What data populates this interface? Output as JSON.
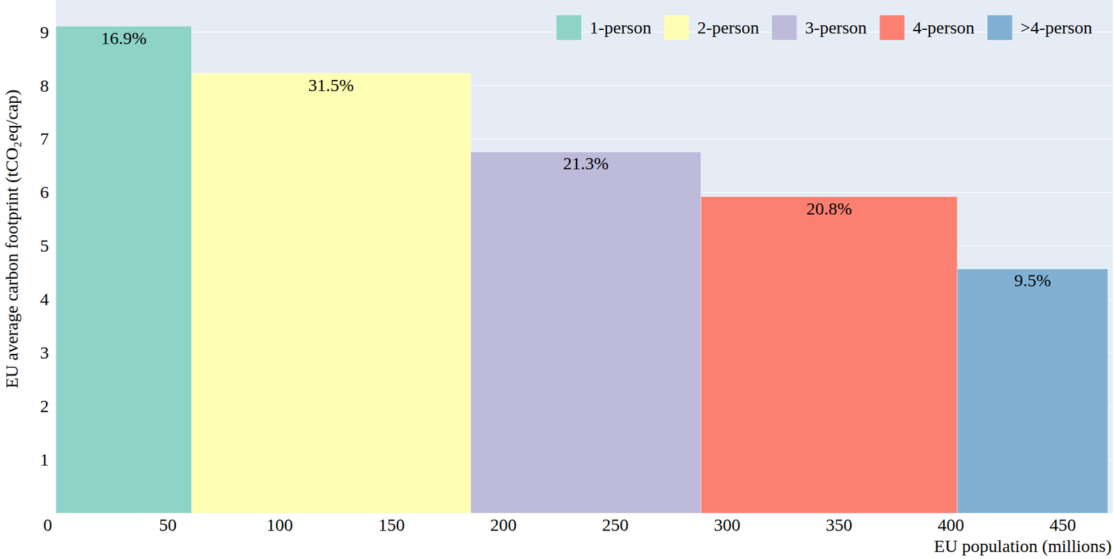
{
  "chart_data": {
    "type": "bar",
    "x_label": "EU population (millions)",
    "y_label": "EU average carbon footprint (tCO₂eq/cap)",
    "categories": [
      "1-person",
      "2-person",
      "3-person",
      "4-person",
      ">4-person"
    ],
    "bins": [
      0,
      60.6,
      185.4,
      288.3,
      402.9,
      470.2
    ],
    "values": [
      9.11,
      8.23,
      6.76,
      5.92,
      4.57
    ],
    "colors": [
      "#8dd3c7",
      "#ffffb3",
      "#bebada",
      "#fb8072",
      "#80b1d3"
    ],
    "annotations": [
      "16.9%",
      "31.5%",
      "21.3%",
      "20.8%",
      "9.5%"
    ],
    "xlim": [
      0,
      472.4
    ],
    "xticks": [
      0,
      50,
      100,
      150,
      200,
      250,
      300,
      350,
      400,
      450
    ],
    "ylim": [
      0,
      9.6
    ],
    "yticks": [
      1,
      2,
      3,
      4,
      5,
      6,
      7,
      8,
      9
    ],
    "grid": true,
    "legend": "top-right"
  }
}
